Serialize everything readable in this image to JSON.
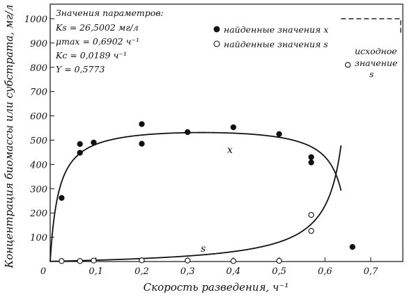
{
  "chart_data": {
    "type": "scatter",
    "xlabel": "Скорость разведения, ч⁻¹",
    "ylabel": "Концентрация биомассы или субстрата, мг/л",
    "xlim": [
      0,
      0.77
    ],
    "ylim": [
      0,
      1060
    ],
    "x_ticks": [
      0,
      0.1,
      0.2,
      0.3,
      0.4,
      0.5,
      0.6,
      0.7
    ],
    "x_tick_labels": [
      "0",
      "0,1",
      "0,2",
      "0,3",
      "0,4",
      "0,5",
      "0,6",
      "0,7"
    ],
    "y_ticks": [
      100,
      200,
      300,
      400,
      500,
      600,
      700,
      800,
      900,
      1000
    ],
    "y_tick_labels": [
      "100",
      "200",
      "300",
      "400",
      "500",
      "600",
      "700",
      "800",
      "900",
      "1000"
    ],
    "grid": false,
    "legend_placement": "top",
    "parameters_title": "Значения параметров:",
    "parameters": [
      "Ks = 26,5002 мг/л",
      "μmax = 0,6902 ч⁻¹",
      "Kc = 0,0189 ч⁻¹",
      "Y = 0,5773"
    ],
    "series": [
      {
        "name": "найденные значения x",
        "marker": "filled-circle",
        "points": [
          [
            0.025,
            262
          ],
          [
            0.065,
            448
          ],
          [
            0.065,
            484
          ],
          [
            0.095,
            490
          ],
          [
            0.2,
            566
          ],
          [
            0.2,
            485
          ],
          [
            0.3,
            533
          ],
          [
            0.4,
            553
          ],
          [
            0.5,
            525
          ],
          [
            0.57,
            430
          ],
          [
            0.57,
            408
          ],
          [
            0.66,
            60
          ]
        ]
      },
      {
        "name": "найденные значения s",
        "marker": "open-circle",
        "points": [
          [
            0.025,
            2
          ],
          [
            0.065,
            2
          ],
          [
            0.095,
            4
          ],
          [
            0.2,
            5
          ],
          [
            0.3,
            4
          ],
          [
            0.4,
            2
          ],
          [
            0.5,
            3
          ],
          [
            0.57,
            192
          ],
          [
            0.57,
            126
          ],
          [
            0.65,
            810
          ]
        ]
      }
    ],
    "curves": [
      {
        "label": "x",
        "kind": "biomass"
      },
      {
        "label": "s",
        "kind": "substrate"
      }
    ],
    "annotation_lines": [
      "исходное",
      "значение",
      "s"
    ],
    "initial_s_value": 1000,
    "colors": {
      "ink": "#111111",
      "background": "#ffffff"
    }
  }
}
